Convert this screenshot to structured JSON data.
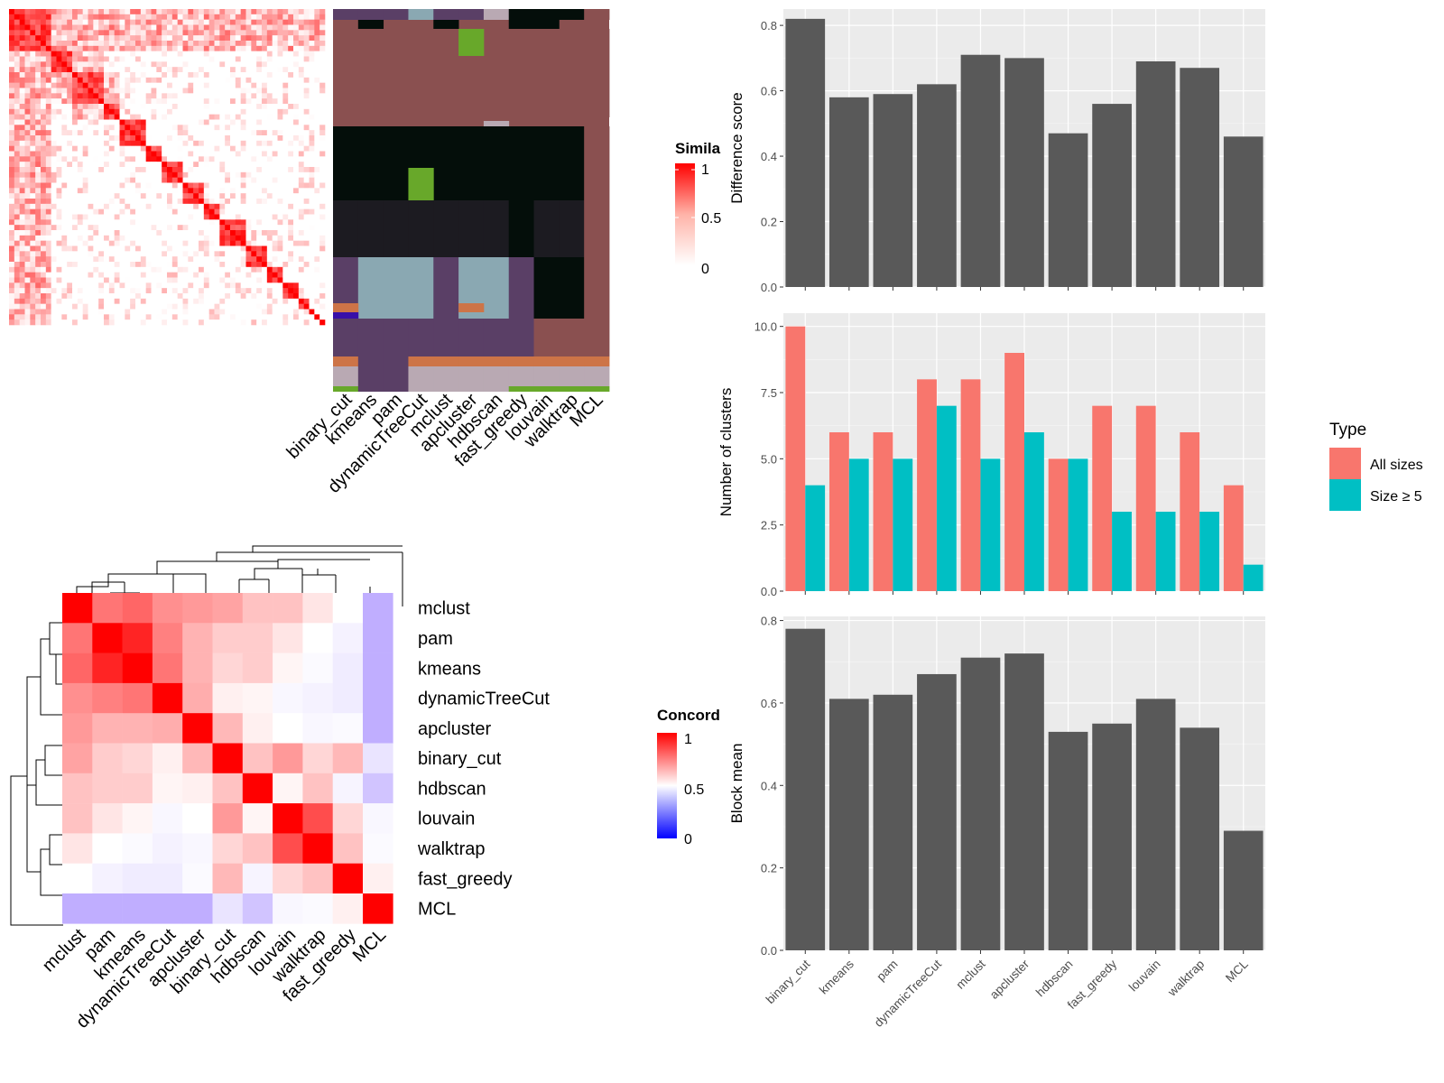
{
  "methods": [
    "binary_cut",
    "kmeans",
    "pam",
    "dynamicTreeCut",
    "mclust",
    "apcluster",
    "hdbscan",
    "fast_greedy",
    "louvain",
    "walktrap",
    "MCL"
  ],
  "legends": {
    "similarity": {
      "title": "Simila",
      "ticks": [
        "1",
        "0.5",
        "0"
      ]
    },
    "concordance": {
      "title": "Concord",
      "ticks": [
        "1",
        "0.5",
        "0"
      ]
    },
    "type": {
      "title": "Type",
      "items": [
        {
          "label": "All sizes",
          "color": "#f8766d"
        },
        {
          "label": "Size ≥ 5",
          "color": "#00bfc4"
        }
      ]
    }
  },
  "colors": {
    "bar": "#595959",
    "panel": "#ebebeb",
    "grid": "#ffffff",
    "heat_high": "#ff0000",
    "heat_low": "#ffffff",
    "conc_low": "#0000ff"
  },
  "chart_data": [
    {
      "type": "heatmap",
      "name": "similarity-heatmap",
      "value_range": [
        0,
        1
      ],
      "n": 60,
      "block_sizes": [
        8,
        4,
        6,
        3,
        5,
        3,
        4,
        4,
        3,
        5,
        4,
        3,
        3,
        2,
        1,
        1,
        1
      ]
    },
    {
      "type": "heatmap",
      "name": "cluster-assignment-heatmap",
      "columns": [
        "binary_cut",
        "kmeans",
        "pam",
        "dynamicTreeCut",
        "mclust",
        "apcluster",
        "hdbscan",
        "fast_greedy",
        "louvain",
        "walktrap",
        "MCL"
      ]
    },
    {
      "type": "heatmap",
      "name": "concordance-heatmap",
      "rows": [
        "mclust",
        "pam",
        "kmeans",
        "dynamicTreeCut",
        "apcluster",
        "binary_cut",
        "hdbscan",
        "louvain",
        "walktrap",
        "fast_greedy",
        "MCL"
      ],
      "columns": [
        "mclust",
        "pam",
        "kmeans",
        "dynamicTreeCut",
        "apcluster",
        "binary_cut",
        "hdbscan",
        "louvain",
        "walktrap",
        "fast_greedy",
        "MCL"
      ],
      "value_range": [
        0,
        1
      ],
      "values": [
        [
          1.0,
          0.77,
          0.8,
          0.72,
          0.7,
          0.68,
          0.62,
          0.62,
          0.55,
          0.5,
          0.2
        ],
        [
          0.77,
          1.0,
          0.93,
          0.75,
          0.65,
          0.6,
          0.6,
          0.55,
          0.5,
          0.45,
          0.2
        ],
        [
          0.8,
          0.93,
          1.0,
          0.77,
          0.65,
          0.58,
          0.6,
          0.52,
          0.48,
          0.43,
          0.2
        ],
        [
          0.72,
          0.75,
          0.77,
          1.0,
          0.66,
          0.53,
          0.52,
          0.47,
          0.45,
          0.43,
          0.2
        ],
        [
          0.7,
          0.65,
          0.65,
          0.66,
          1.0,
          0.64,
          0.53,
          0.5,
          0.47,
          0.48,
          0.2
        ],
        [
          0.68,
          0.6,
          0.58,
          0.53,
          0.64,
          1.0,
          0.62,
          0.7,
          0.58,
          0.64,
          0.4
        ],
        [
          0.62,
          0.6,
          0.6,
          0.52,
          0.53,
          0.62,
          1.0,
          0.52,
          0.62,
          0.46,
          0.28
        ],
        [
          0.62,
          0.55,
          0.52,
          0.47,
          0.5,
          0.7,
          0.52,
          1.0,
          0.85,
          0.58,
          0.47
        ],
        [
          0.55,
          0.5,
          0.48,
          0.45,
          0.47,
          0.58,
          0.62,
          0.85,
          1.0,
          0.62,
          0.48
        ],
        [
          0.5,
          0.45,
          0.43,
          0.43,
          0.48,
          0.64,
          0.46,
          0.58,
          0.62,
          1.0,
          0.53
        ],
        [
          0.2,
          0.2,
          0.2,
          0.2,
          0.2,
          0.4,
          0.28,
          0.47,
          0.48,
          0.53,
          1.0
        ]
      ]
    },
    {
      "type": "bar",
      "name": "difference-score",
      "categories": [
        "binary_cut",
        "kmeans",
        "pam",
        "dynamicTreeCut",
        "mclust",
        "apcluster",
        "hdbscan",
        "fast_greedy",
        "louvain",
        "walktrap",
        "MCL"
      ],
      "values": [
        0.82,
        0.58,
        0.59,
        0.62,
        0.71,
        0.7,
        0.47,
        0.56,
        0.69,
        0.67,
        0.46
      ],
      "ylabel": "Difference score",
      "ylim": [
        0,
        0.85
      ],
      "yticks": [
        "0.0",
        "0.2",
        "0.4",
        "0.6",
        "0.8"
      ]
    },
    {
      "type": "bar",
      "name": "number-of-clusters",
      "categories": [
        "binary_cut",
        "kmeans",
        "pam",
        "dynamicTreeCut",
        "mclust",
        "apcluster",
        "hdbscan",
        "fast_greedy",
        "louvain",
        "walktrap",
        "MCL"
      ],
      "series": [
        {
          "name": "All sizes",
          "values": [
            10,
            6,
            6,
            8,
            8,
            9,
            5,
            7,
            7,
            6,
            4
          ]
        },
        {
          "name": "Size ≥ 5",
          "values": [
            4,
            5,
            5,
            7,
            5,
            6,
            5,
            3,
            3,
            3,
            1
          ]
        }
      ],
      "ylabel": "Number of clusters",
      "ylim": [
        0,
        10.5
      ],
      "yticks": [
        "0.0",
        "2.5",
        "5.0",
        "7.5",
        "10.0"
      ]
    },
    {
      "type": "bar",
      "name": "block-mean",
      "categories": [
        "binary_cut",
        "kmeans",
        "pam",
        "dynamicTreeCut",
        "mclust",
        "apcluster",
        "hdbscan",
        "fast_greedy",
        "louvain",
        "walktrap",
        "MCL"
      ],
      "values": [
        0.78,
        0.61,
        0.62,
        0.67,
        0.71,
        0.72,
        0.53,
        0.55,
        0.61,
        0.54,
        0.29
      ],
      "ylabel": "Block mean",
      "ylim": [
        0,
        0.81
      ],
      "yticks": [
        "0.0",
        "0.2",
        "0.4",
        "0.6",
        "0.8"
      ]
    }
  ]
}
